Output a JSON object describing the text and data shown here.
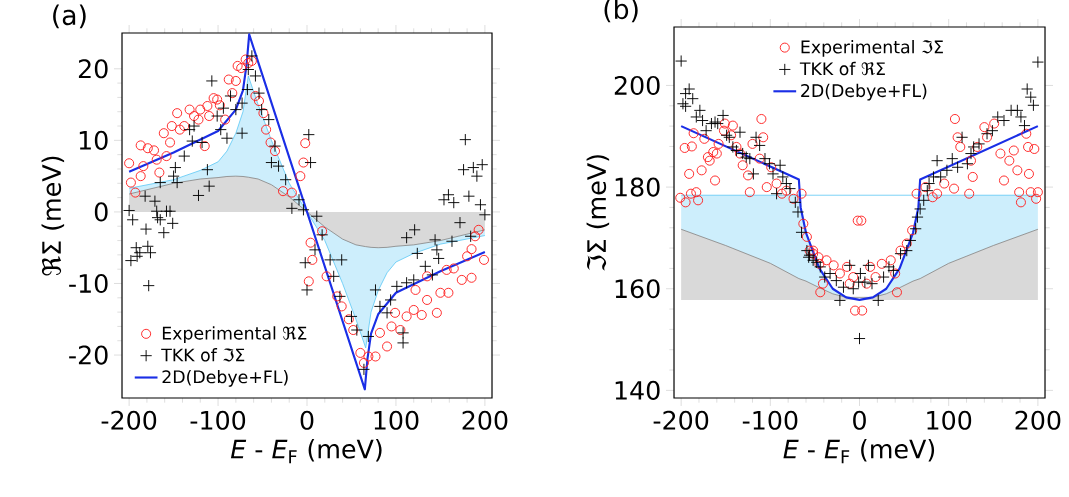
{
  "chart_data": [
    {
      "type": "scatter",
      "title": "(a)",
      "xlabel": "*E* - *E*$_{F}$ (meV)",
      "ylabel": "ℜΣ (meV)",
      "xlim": [
        -208,
        208
      ],
      "ylim": [
        -26,
        25
      ],
      "xticks": [
        -200,
        -100,
        0,
        100,
        200
      ],
      "yticks": [
        -20,
        -10,
        0,
        10,
        20
      ],
      "legend": "bottom left",
      "series": [
        {
          "type": "line",
          "color": "#5ac8f5",
          "x": [
            -200,
            -150,
            -120,
            -100,
            -90,
            -80,
            -72,
            -66,
            -55,
            -40,
            -20,
            0,
            20,
            40,
            55,
            66,
            72,
            80,
            90,
            100,
            120,
            150,
            200
          ],
          "values": [
            3.3,
            4.5,
            5.8,
            7,
            8.5,
            11,
            14,
            19,
            15,
            10,
            4,
            0,
            -4,
            -10,
            -15,
            -19,
            -14,
            -11,
            -8.5,
            -7,
            -5.8,
            -4.5,
            -3.3
          ],
          "upper": [
            3.3,
            4.5,
            5.8,
            7,
            8.5,
            11,
            14,
            19,
            15,
            10,
            4,
            0,
            -4,
            -10,
            -15,
            -19,
            -14,
            -11,
            -8.5,
            -7,
            -5.8,
            -4.5,
            -3.3
          ],
          "lower": [
            2.5,
            4,
            4.6,
            4.8,
            4.95,
            5,
            4.95,
            4.85,
            4.6,
            3.8,
            2.1,
            0,
            -2.1,
            -3.8,
            -4.6,
            -4.85,
            -4.95,
            -5,
            -4.95,
            -4.8,
            -4.6,
            -4,
            -2.5
          ]
        },
        {
          "type": "line",
          "color": "#808080",
          "x": [
            -200,
            -150,
            -120,
            -100,
            -90,
            -80,
            -72,
            -66,
            -55,
            -40,
            -20,
            0,
            20,
            40,
            55,
            66,
            72,
            80,
            90,
            100,
            120,
            150,
            200
          ],
          "values": [
            2.5,
            4,
            4.6,
            4.8,
            4.95,
            5,
            4.95,
            4.85,
            4.6,
            3.8,
            2.1,
            0,
            -2.1,
            -3.8,
            -4.6,
            -4.85,
            -4.95,
            -5,
            -4.95,
            -4.8,
            -4.6,
            -4,
            -2.5
          ],
          "upper": [
            2.5,
            4,
            4.6,
            4.8,
            4.95,
            5,
            4.95,
            4.85,
            4.6,
            3.8,
            2.1,
            0,
            -2.1,
            -3.8,
            -4.6,
            -4.85,
            -4.95,
            -5,
            -4.95,
            -4.8,
            -4.6,
            -4,
            -2.5
          ],
          "lower": [
            0,
            0,
            0,
            0,
            0,
            0,
            0,
            0,
            0,
            0,
            0,
            0,
            0,
            0,
            0,
            0,
            0,
            0,
            0,
            0,
            0,
            0,
            0
          ]
        },
        {
          "name": "Experimental ℜΣ",
          "color": "#ff2020",
          "marker": "circle",
          "x": [
            -200,
            -198,
            -193,
            -187,
            -187,
            -184,
            -179,
            -172,
            -169,
            -166,
            -161,
            -158,
            -154,
            -152,
            -146,
            -143,
            -138,
            -132,
            -127,
            -122,
            -120,
            -115,
            -112,
            -110,
            -105,
            -101,
            -98,
            -92,
            -88,
            -84,
            -80,
            -78,
            -74,
            -69,
            -66,
            -62,
            -58,
            -54,
            -49,
            -46,
            -41,
            -36,
            -27,
            -17,
            -7.5,
            -4,
            -2,
            2,
            4,
            6,
            17,
            22,
            34,
            39,
            47,
            52,
            60,
            64,
            69,
            77,
            82,
            90,
            95,
            99,
            105,
            112,
            120,
            122,
            129,
            135,
            135,
            146,
            150,
            157,
            159,
            165,
            174,
            180,
            185,
            185,
            189,
            193,
            199
          ],
          "values": [
            6.8,
            4.1,
            2.7,
            5.0,
            9.3,
            6.4,
            8.9,
            8.6,
            7.3,
            5.5,
            11,
            7.8,
            9.7,
            12,
            13.8,
            11.5,
            12,
            14.3,
            13.4,
            12.9,
            14.3,
            9.2,
            14.8,
            13.4,
            15.9,
            15.7,
            14.9,
            12.9,
            18.5,
            16.6,
            18.3,
            20.4,
            20.1,
            21.3,
            20.8,
            21.1,
            16.2,
            15.5,
            13.8,
            11.5,
            9.7,
            8.5,
            2.9,
            2.7,
            5.0,
            6.9,
            9.6,
            -9.7,
            -4.3,
            -6.7,
            -2.7,
            -9,
            -11.8,
            -13.2,
            -15,
            -16.5,
            -19.7,
            -21.1,
            -20.2,
            -20.2,
            -16.9,
            -18.8,
            -16,
            -14.1,
            -16.5,
            -14.6,
            -13.7,
            -10.9,
            -14.4,
            -12.3,
            -9,
            -14.1,
            -11.3,
            -8.1,
            -11.3,
            -7.9,
            -9.5,
            -6.2,
            -9.2,
            -5.2,
            -3.4,
            -2.5,
            -6.7
          ]
        },
        {
          "name": "TKK of ℑΣ",
          "color": "#000000",
          "marker": "cross",
          "x": [
            -200,
            -198,
            -196,
            -192,
            -191,
            -188,
            -182,
            -181,
            -179,
            -178,
            -176,
            -171,
            -169,
            -168,
            -165,
            -165,
            -161,
            -158,
            -154,
            -151,
            -150,
            -148,
            -146,
            -138,
            -132,
            -129,
            -127,
            -122,
            -118,
            -112,
            -110,
            -107,
            -101,
            -97,
            -94,
            -90,
            -86,
            -80,
            -73,
            -73,
            -67,
            -66,
            -62,
            -58,
            -54,
            -51,
            -43,
            -40,
            -36,
            -32,
            -24,
            -17,
            -9,
            -4,
            -2,
            0,
            2,
            4,
            9,
            11,
            17,
            26,
            30,
            37,
            39,
            50,
            56,
            64,
            69,
            77,
            82,
            90,
            94,
            101,
            108,
            108,
            112,
            112,
            120,
            121,
            124,
            133,
            141,
            144,
            146,
            148,
            154,
            159,
            163,
            165,
            172,
            176,
            178,
            182,
            184,
            187,
            191,
            195,
            197,
            200
          ],
          "values": [
            0.2,
            -6.8,
            -1.1,
            -5.0,
            -6.2,
            -5.7,
            2.2,
            -2.4,
            -4.8,
            -10.3,
            -5.7,
            1.5,
            0.1,
            -0.8,
            -1.1,
            4.1,
            -2.9,
            0.1,
            0.1,
            -1.6,
            5.0,
            6.2,
            4.1,
            7.8,
            11.5,
            9.9,
            12,
            2.3,
            9.7,
            5.9,
            3.6,
            18.3,
            13.4,
            11.5,
            14.5,
            10.3,
            16.2,
            14.3,
            11.0,
            15.2,
            17.1,
            19.9,
            21.8,
            19.0,
            16.6,
            14.3,
            12.9,
            6.9,
            9.2,
            6.4,
            4.5,
            0.5,
            1.7,
            0.3,
            -7.1,
            -10.9,
            10.8,
            6.9,
            -5.3,
            -0.6,
            -3.2,
            -6.7,
            -9,
            -11.8,
            -6.7,
            -14.6,
            -16.5,
            -22,
            -17.4,
            -10.9,
            -13.2,
            -14.1,
            -12.3,
            -10.4,
            -16.9,
            -18.3,
            -9.9,
            -3.6,
            -9.5,
            -2.5,
            -5.8,
            -7.6,
            -8.8,
            -3.9,
            -5.3,
            -6.5,
            1.7,
            2.4,
            -4.1,
            1.3,
            -1.5,
            5.9,
            10.1,
            2.2,
            -3.4,
            6.2,
            5.0,
            1.0,
            6.6,
            -0.4
          ]
        },
        {
          "name": "2D(Debye+FL)",
          "type": "line",
          "color": "#1a2ee6",
          "x": [
            -200,
            -150,
            -100,
            -80,
            -72,
            -68,
            -65,
            0,
            65,
            68,
            72,
            80,
            100,
            150,
            200
          ],
          "values": [
            5.6,
            8.3,
            11.3,
            14.3,
            17,
            20.5,
            24.8,
            0,
            -24.8,
            -20.5,
            -17,
            -14.3,
            -11.3,
            -8.3,
            -5.6
          ]
        }
      ]
    },
    {
      "type": "scatter",
      "title": "(b)",
      "xlabel": "*E* - *E*$_{F}$ (meV)",
      "ylabel": "ℑΣ (meV)",
      "xlim": [
        -208,
        208
      ],
      "ylim": [
        138.5,
        211.5
      ],
      "xticks": [
        -200,
        -100,
        0,
        100,
        200
      ],
      "yticks": [
        140,
        160,
        180,
        200
      ],
      "legend": "top",
      "series": [
        {
          "type": "line",
          "color": "#5ac8f5",
          "x": [
            -200,
            -150,
            -100,
            -68,
            -60,
            -45,
            -30,
            -15,
            0,
            15,
            30,
            45,
            60,
            68,
            100,
            150,
            200
          ],
          "values": [
            178.4,
            178.4,
            178.4,
            178.4,
            null,
            null,
            null,
            null,
            null,
            null,
            null,
            null,
            null,
            178.4,
            178.4,
            178.4,
            178.4
          ],
          "upper": [
            178.4,
            178.4,
            178.4,
            178.4,
            171,
            164,
            160,
            158.3,
            158,
            158.3,
            160,
            164,
            171,
            178.4,
            178.4,
            178.4,
            178.4
          ],
          "lower": [
            171.7,
            168.5,
            165,
            162,
            161.5,
            160.2,
            159,
            158.3,
            158,
            158.3,
            159,
            160.2,
            161.5,
            162,
            165,
            168.5,
            171.7
          ]
        },
        {
          "type": "line",
          "color": "#808080",
          "x": [
            -200,
            -150,
            -100,
            -68,
            -60,
            -45,
            -30,
            -15,
            0,
            15,
            30,
            45,
            60,
            68,
            100,
            150,
            200
          ],
          "values": [
            171.7,
            168.5,
            165,
            162,
            161.5,
            160.2,
            159,
            158.3,
            null,
            158.3,
            159,
            160.2,
            161.5,
            162,
            165,
            168.5,
            171.7
          ],
          "upper": [
            171.7,
            168.5,
            165,
            162,
            161.5,
            160.2,
            159,
            158.3,
            158,
            158.3,
            159,
            160.2,
            161.5,
            162,
            165,
            168.5,
            171.7
          ],
          "lower": [
            157.8,
            157.8,
            157.8,
            157.8,
            157.8,
            157.8,
            157.8,
            157.8,
            157.8,
            157.8,
            157.8,
            157.8,
            157.8,
            157.8,
            157.8,
            157.8,
            157.8
          ]
        },
        {
          "name": "Experimental ℑΣ",
          "color": "#ff2020",
          "marker": "circle",
          "x": [
            -201,
            -196,
            -195,
            -191,
            -189,
            -188,
            -186,
            -183,
            -181,
            -177,
            -174,
            -170,
            -168,
            -164,
            -162,
            -160,
            -158,
            -152,
            -151,
            -144,
            -142,
            -138,
            -134,
            -131,
            -125,
            -123,
            -120,
            -112,
            -110,
            -108,
            -104,
            -99,
            -93,
            -87,
            -82,
            -74,
            -65,
            -63,
            -59,
            -56,
            -52,
            -52,
            -46,
            -45,
            -44,
            -41,
            -37,
            -29,
            -22,
            -14,
            -11,
            -7,
            -5,
            -2,
            2,
            3,
            8,
            12,
            18,
            25,
            35,
            40,
            42,
            46,
            53,
            59,
            64,
            74,
            82,
            87,
            95,
            106,
            107,
            110,
            113,
            123,
            125,
            127,
            132,
            140,
            143,
            151,
            158,
            162,
            168,
            173,
            177,
            179,
            181,
            187,
            189,
            190,
            192,
            196,
            198,
            200
          ],
          "values": [
            177.9,
            187.7,
            177,
            182.6,
            178.7,
            188,
            190.6,
            179,
            177.4,
            183.3,
            189.5,
            185.9,
            185.2,
            186.9,
            181.3,
            186.6,
            188.5,
            191.1,
            192.5,
            190.2,
            192.1,
            187.9,
            186.6,
            184.3,
            182.3,
            179,
            188.5,
            185.6,
            193.4,
            189.8,
            180,
            183.9,
            180.7,
            178.7,
            179.3,
            177.7,
            178.7,
            172.8,
            170.2,
            167.5,
            166.9,
            167.5,
            166.2,
            164.9,
            159.3,
            161,
            165.6,
            164.6,
            163,
            164.3,
            161,
            162.3,
            155.7,
            173.4,
            173.4,
            155.7,
            161,
            164.3,
            162.3,
            164.9,
            165.6,
            163,
            159.3,
            167.5,
            168.9,
            171.5,
            178.7,
            180,
            178,
            178.7,
            180.7,
            179.7,
            193.4,
            189.8,
            187.9,
            178.7,
            185.2,
            182,
            187.9,
            191.8,
            189.8,
            192.5,
            186.6,
            181.3,
            185.2,
            187.2,
            183.3,
            179,
            177,
            190.5,
            187.9,
            182.6,
            179,
            187.5,
            177.7,
            179
          ]
        },
        {
          "name": "TKK of ℜΣ",
          "color": "#000000",
          "marker": "cross",
          "x": [
            -200,
            -198,
            -195,
            -195,
            -191,
            -187,
            -183,
            -179,
            -176,
            -172,
            -166,
            -162,
            -159,
            -153,
            -149,
            -146,
            -142,
            -138,
            -134,
            -131,
            -127,
            -123,
            -119,
            -116,
            -112,
            -106,
            -101,
            -97,
            -93,
            -89,
            -86,
            -82,
            -78,
            -72,
            -69,
            -65,
            -59,
            -57,
            -56,
            -52,
            -48,
            -44,
            -39,
            -33,
            -26,
            -22,
            -18,
            -11,
            -7,
            -1,
            0,
            1,
            6,
            10,
            14,
            21,
            27,
            33,
            38,
            46,
            53,
            57,
            63,
            65,
            68,
            72,
            76,
            78,
            83,
            87,
            91,
            98,
            104,
            110,
            115,
            121,
            125,
            128,
            134,
            143,
            149,
            155,
            162,
            170,
            177,
            181,
            185,
            188,
            192,
            195,
            200
          ],
          "values": [
            204.8,
            196.4,
            198.4,
            195.9,
            199.3,
            197.4,
            193.8,
            195.1,
            193.1,
            191.1,
            192.5,
            192.8,
            192.5,
            194.1,
            190.2,
            189.8,
            187.9,
            187.2,
            190.8,
            186.6,
            185.9,
            185.6,
            182.6,
            189.8,
            188.2,
            185.6,
            184.6,
            182.6,
            178.7,
            184.3,
            182,
            180.7,
            179.7,
            177,
            175.1,
            171.1,
            167.5,
            166.2,
            166.6,
            165.6,
            165.2,
            164.3,
            162.3,
            163,
            161.6,
            157.7,
            160.3,
            164.6,
            160,
            161.3,
            150.2,
            163,
            161.3,
            164.6,
            161,
            157.7,
            162.3,
            164.3,
            163.6,
            166.9,
            167.5,
            169.5,
            171.8,
            174.1,
            175.7,
            177.4,
            179.3,
            180.7,
            182,
            185.2,
            182,
            183.3,
            185.6,
            183.9,
            189.8,
            184.6,
            186.6,
            187.9,
            188.5,
            190.5,
            191.1,
            193.8,
            193.1,
            195.1,
            195.1,
            193.8,
            192.1,
            199.3,
            197.7,
            196.1,
            204.6
          ]
        },
        {
          "name": "2D(Debye+FL)",
          "type": "line",
          "color": "#1a2ee6",
          "x": [
            -200,
            -68,
            -66,
            -60,
            -45,
            -30,
            -15,
            0,
            15,
            30,
            45,
            60,
            66,
            68,
            200
          ],
          "values": [
            192,
            181.5,
            176,
            171,
            164,
            160,
            158.3,
            157.8,
            158.3,
            160,
            164,
            171,
            176,
            181.5,
            192
          ]
        }
      ]
    }
  ]
}
